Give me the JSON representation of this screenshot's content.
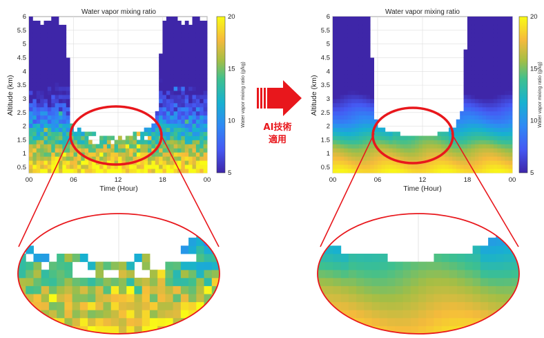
{
  "annotation": {
    "line1": "AI技術",
    "line2": "適用"
  },
  "colors": {
    "highlight": "#e8171c",
    "arrow": "#e8171c"
  },
  "chart_data": [
    {
      "id": "original",
      "type": "heatmap",
      "title": "Water vapor mixing ratio",
      "xlabel": "Time (Hour)",
      "ylabel": "Altitude (km)",
      "x_ticks": [
        "00",
        "06",
        "12",
        "18",
        "00"
      ],
      "y_ticks": [
        "0.5",
        "1",
        "1.5",
        "2",
        "2.5",
        "3",
        "3.5",
        "4",
        "4.5",
        "5",
        "5.5",
        "6"
      ],
      "xlim": [
        0,
        24
      ],
      "ylim": [
        0.3,
        6
      ],
      "colorbar": {
        "label": "Water vapor mixing ratio (g/kg)",
        "ticks": [
          "5",
          "10",
          "15",
          "20"
        ],
        "range": [
          5,
          20
        ]
      },
      "grid": true,
      "data_boundary": [
        [
          0,
          6
        ],
        [
          5,
          6
        ],
        [
          5.5,
          3
        ],
        [
          5.8,
          2.1
        ],
        [
          7.5,
          1.8
        ],
        [
          12,
          1.6
        ],
        [
          15,
          1.8
        ],
        [
          16.5,
          2.0
        ],
        [
          17.3,
          2.6
        ],
        [
          18,
          6
        ],
        [
          24,
          6
        ]
      ],
      "noisy": true
    },
    {
      "id": "ai_applied",
      "type": "heatmap",
      "title": "Water vapor mixing ratio",
      "xlabel": "Time (Hour)",
      "ylabel": "Altitude (km)",
      "x_ticks": [
        "00",
        "06",
        "12",
        "18",
        "00"
      ],
      "y_ticks": [
        "0.5",
        "1",
        "1.5",
        "2",
        "2.5",
        "3",
        "3.5",
        "4",
        "4.5",
        "5",
        "5.5",
        "6"
      ],
      "xlim": [
        0,
        24
      ],
      "ylim": [
        0.3,
        6
      ],
      "colorbar": {
        "label": "Water vapor mixing ratio (g/kg)",
        "ticks": [
          "5",
          "10",
          "15",
          "20"
        ],
        "range": [
          5,
          20
        ]
      },
      "grid": true,
      "data_boundary": [
        [
          0,
          6
        ],
        [
          5,
          6
        ],
        [
          5.5,
          3
        ],
        [
          5.8,
          2.1
        ],
        [
          7.5,
          1.8
        ],
        [
          12,
          1.6
        ],
        [
          15,
          1.8
        ],
        [
          16.5,
          2.0
        ],
        [
          17.3,
          2.6
        ],
        [
          18,
          6
        ],
        [
          24,
          6
        ]
      ],
      "noisy": false
    }
  ]
}
